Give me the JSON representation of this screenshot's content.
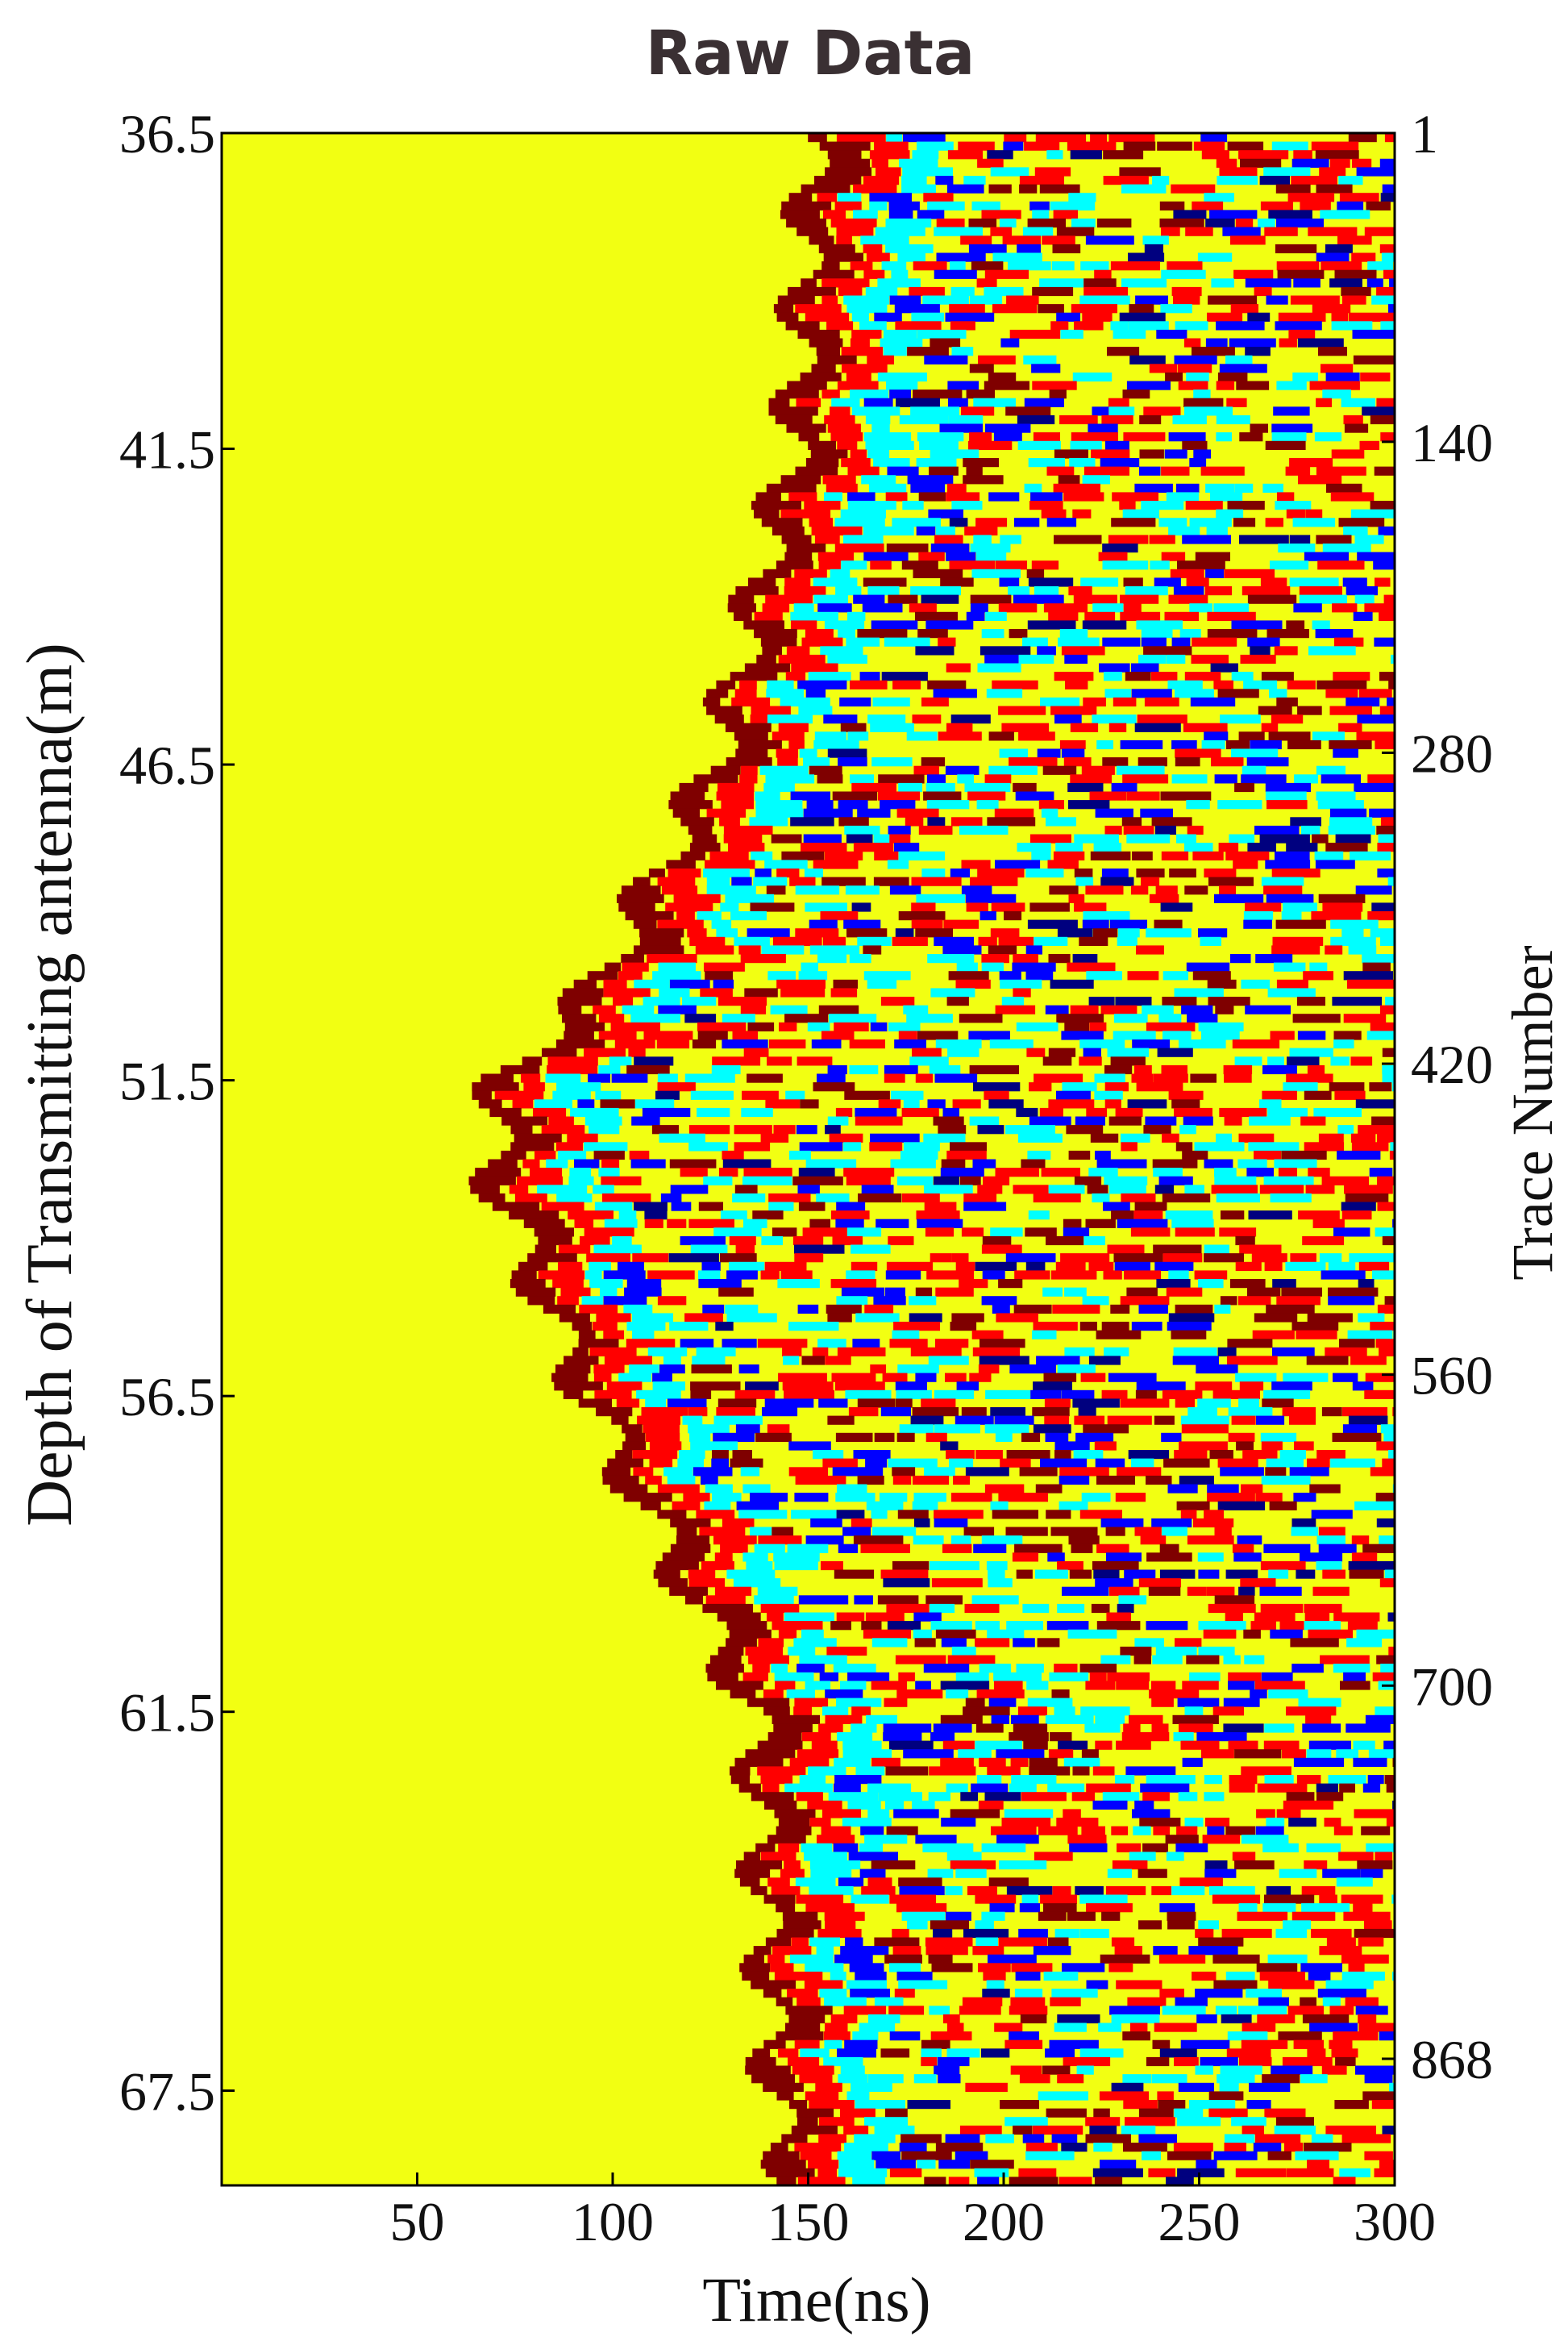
{
  "chart_data": {
    "type": "heatmap",
    "title": "Raw Data",
    "xlabel": "Time(ns)",
    "ylabel": "Depth of Transmitting antenna(m)",
    "y2label": "Trace Number",
    "xlim": [
      0,
      300
    ],
    "ylim": [
      36.5,
      69.0
    ],
    "y2lim": [
      1,
      925
    ],
    "x_ticks": [
      50,
      100,
      150,
      200,
      250,
      300
    ],
    "y_ticks": [
      36.5,
      41.5,
      46.5,
      51.5,
      56.5,
      61.5,
      67.5
    ],
    "y2_ticks": [
      1,
      140,
      280,
      420,
      560,
      700,
      868
    ],
    "colormap": [
      "#00007f",
      "#0000ff",
      "#00ffff",
      "#ffff00",
      "#ff0000",
      "#7f0000"
    ],
    "background_color": "#f2ff12",
    "first_arrival_front": [
      {
        "depth": 36.5,
        "time": 150
      },
      {
        "depth": 41.5,
        "time": 145
      },
      {
        "depth": 46.5,
        "time": 125
      },
      {
        "depth": 50.0,
        "time": 95
      },
      {
        "depth": 51.5,
        "time": 70
      },
      {
        "depth": 53.0,
        "time": 68
      },
      {
        "depth": 56.5,
        "time": 92
      },
      {
        "depth": 61.5,
        "time": 135
      },
      {
        "depth": 67.5,
        "time": 140
      },
      {
        "depth": 69.0,
        "time": 145
      }
    ]
  }
}
